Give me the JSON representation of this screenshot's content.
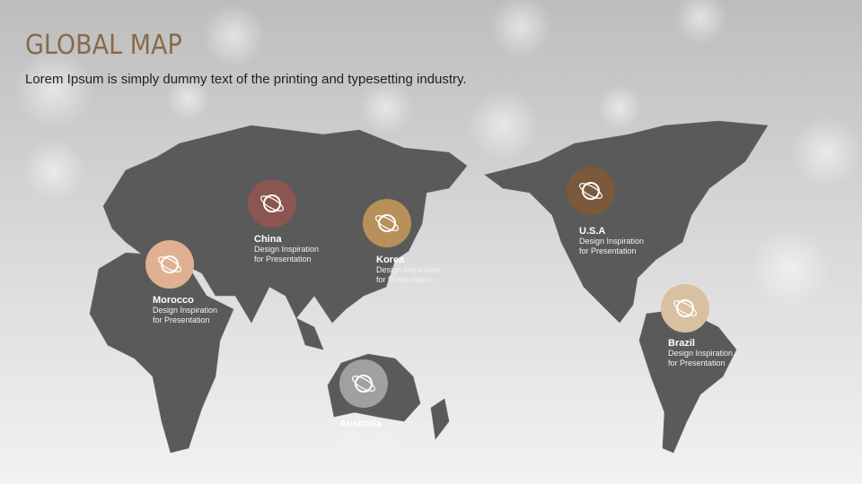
{
  "header": {
    "title": "GLOBAL MAP",
    "subtitle": "Lorem Ipsum is simply dummy text of the printing and typesetting industry."
  },
  "markers": [
    {
      "name": "China",
      "lines": [
        "Design Inspiration",
        "for Presentation"
      ]
    },
    {
      "name": "Korea",
      "lines": [
        "Design Inspiration",
        "for Presentation"
      ]
    },
    {
      "name": "Morocco",
      "lines": [
        "Design Inspiration",
        "for Presentation"
      ]
    },
    {
      "name": "Australia",
      "lines": [
        "Design Inspiration",
        "for Presentation"
      ]
    },
    {
      "name": "U.S.A",
      "lines": [
        "Design Inspiration",
        "for Presentation"
      ]
    },
    {
      "name": "Brazil",
      "lines": [
        "Design Inspiration",
        "for Presentation"
      ]
    }
  ]
}
